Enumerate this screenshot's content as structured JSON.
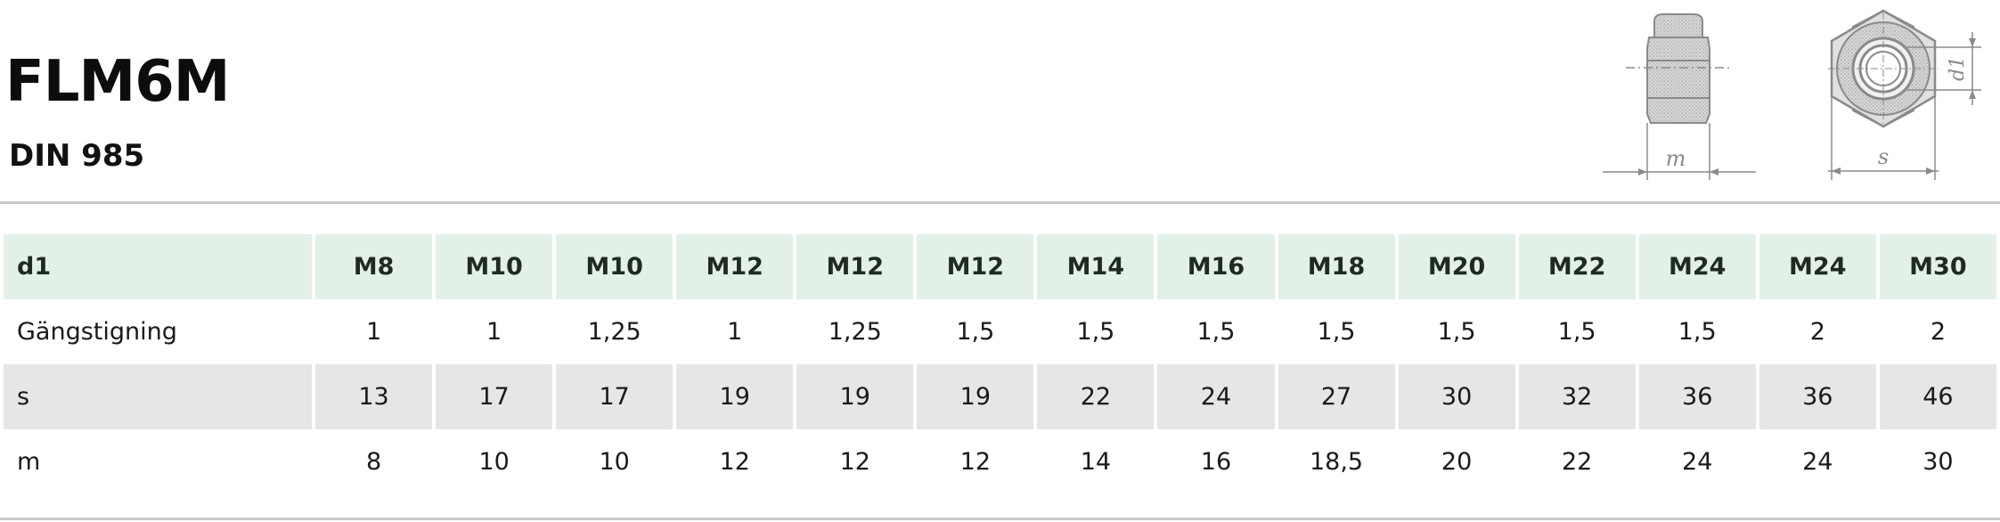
{
  "product": {
    "title": "FLM6M",
    "standard": "DIN 985"
  },
  "drawings": {
    "side_label": "m",
    "top_label_width": "s",
    "top_label_diameter": "d1"
  },
  "table": {
    "rows": [
      {
        "label": "d1",
        "values": [
          "M8",
          "M10",
          "M10",
          "M12",
          "M12",
          "M12",
          "M14",
          "M16",
          "M18",
          "M20",
          "M22",
          "M24",
          "M24",
          "M30"
        ]
      },
      {
        "label": "Gängstigning",
        "values": [
          "1",
          "1",
          "1,25",
          "1",
          "1,25",
          "1,5",
          "1,5",
          "1,5",
          "1,5",
          "1,5",
          "1,5",
          "1,5",
          "2",
          "2"
        ]
      },
      {
        "label": "s",
        "values": [
          "13",
          "17",
          "17",
          "19",
          "19",
          "19",
          "22",
          "24",
          "27",
          "30",
          "32",
          "36",
          "36",
          "46"
        ]
      },
      {
        "label": "m",
        "values": [
          "8",
          "10",
          "10",
          "12",
          "12",
          "12",
          "14",
          "16",
          "18,5",
          "20",
          "22",
          "24",
          "24",
          "30"
        ]
      }
    ]
  },
  "colors": {
    "header_row": "#e3f0e8",
    "shaded_row": "#e6e6e6",
    "divider": "#c9c9c9",
    "drawing": "#8a8a8a"
  }
}
